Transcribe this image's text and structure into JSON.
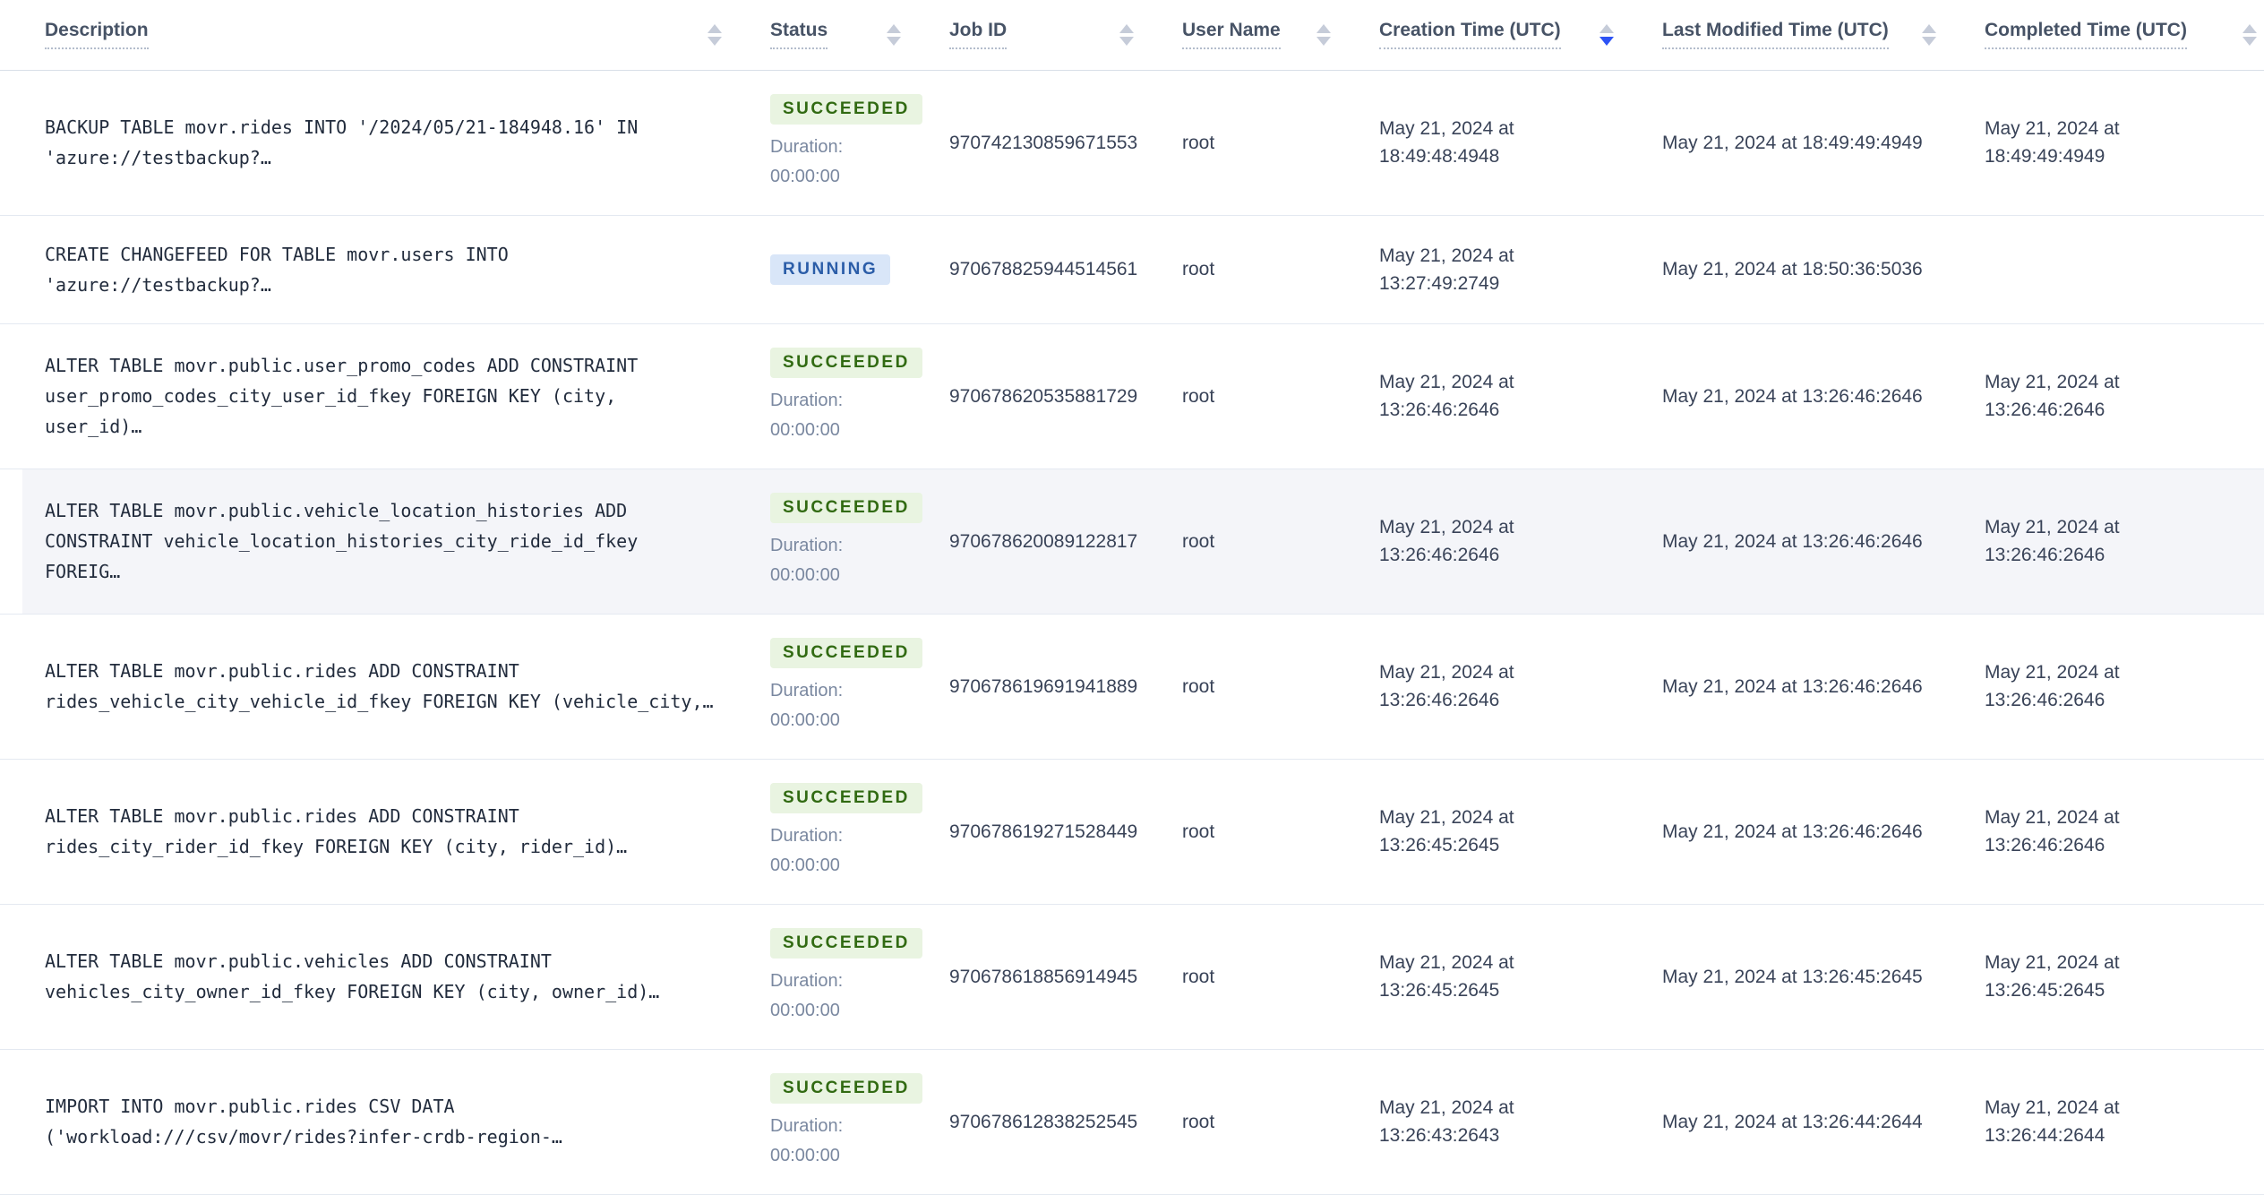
{
  "colors": {
    "succeeded_text": "#316a12",
    "succeeded_bg": "#e9f4e1",
    "running_text": "#2b5da8",
    "running_bg": "#d9e6f8",
    "sort_active": "#2d53f5",
    "sort_inactive": "#c6ccd9",
    "highlight_row_bg": "#f4f5f9"
  },
  "labels": {
    "duration": "Duration:"
  },
  "table": {
    "columns": [
      {
        "id": "description",
        "label": "Description",
        "sort": "none"
      },
      {
        "id": "status",
        "label": "Status",
        "sort": "none"
      },
      {
        "id": "job_id",
        "label": "Job ID",
        "sort": "none"
      },
      {
        "id": "user_name",
        "label": "User Name",
        "sort": "none"
      },
      {
        "id": "created",
        "label": "Creation Time (UTC)",
        "sort": "desc"
      },
      {
        "id": "modified",
        "label": "Last Modified Time (UTC)",
        "sort": "none"
      },
      {
        "id": "completed",
        "label": "Completed Time (UTC)",
        "sort": "none"
      }
    ],
    "rows": [
      {
        "description": "BACKUP TABLE movr.rides INTO '/2024/05/21-184948.16' IN 'azure://testbackup?…",
        "status": "SUCCEEDED",
        "duration": "00:00:00",
        "job_id": "970742130859671553",
        "user_name": "root",
        "created": "May 21, 2024 at 18:49:48:4948",
        "modified": "May 21, 2024 at 18:49:49:4949",
        "completed": "May 21, 2024 at 18:49:49:4949",
        "highlighted": false
      },
      {
        "description": "CREATE CHANGEFEED FOR TABLE movr.users INTO 'azure://testbackup?…",
        "status": "RUNNING",
        "duration": null,
        "job_id": "970678825944514561",
        "user_name": "root",
        "created": "May 21, 2024 at 13:27:49:2749",
        "modified": "May 21, 2024 at 18:50:36:5036",
        "completed": "",
        "highlighted": false
      },
      {
        "description": "ALTER TABLE movr.public.user_promo_codes ADD CONSTRAINT user_promo_codes_city_user_id_fkey FOREIGN KEY (city, user_id)…",
        "status": "SUCCEEDED",
        "duration": "00:00:00",
        "job_id": "970678620535881729",
        "user_name": "root",
        "created": "May 21, 2024 at 13:26:46:2646",
        "modified": "May 21, 2024 at 13:26:46:2646",
        "completed": "May 21, 2024 at 13:26:46:2646",
        "highlighted": false
      },
      {
        "description": "ALTER TABLE movr.public.vehicle_location_histories ADD CONSTRAINT vehicle_location_histories_city_ride_id_fkey FOREIG…",
        "status": "SUCCEEDED",
        "duration": "00:00:00",
        "job_id": "970678620089122817",
        "user_name": "root",
        "created": "May 21, 2024 at 13:26:46:2646",
        "modified": "May 21, 2024 at 13:26:46:2646",
        "completed": "May 21, 2024 at 13:26:46:2646",
        "highlighted": true
      },
      {
        "description": "ALTER TABLE movr.public.rides ADD CONSTRAINT rides_vehicle_city_vehicle_id_fkey FOREIGN KEY (vehicle_city,…",
        "status": "SUCCEEDED",
        "duration": "00:00:00",
        "job_id": "970678619691941889",
        "user_name": "root",
        "created": "May 21, 2024 at 13:26:46:2646",
        "modified": "May 21, 2024 at 13:26:46:2646",
        "completed": "May 21, 2024 at 13:26:46:2646",
        "highlighted": false
      },
      {
        "description": "ALTER TABLE movr.public.rides ADD CONSTRAINT rides_city_rider_id_fkey FOREIGN KEY (city, rider_id)…",
        "status": "SUCCEEDED",
        "duration": "00:00:00",
        "job_id": "970678619271528449",
        "user_name": "root",
        "created": "May 21, 2024 at 13:26:45:2645",
        "modified": "May 21, 2024 at 13:26:46:2646",
        "completed": "May 21, 2024 at 13:26:46:2646",
        "highlighted": false
      },
      {
        "description": "ALTER TABLE movr.public.vehicles ADD CONSTRAINT vehicles_city_owner_id_fkey FOREIGN KEY (city, owner_id)…",
        "status": "SUCCEEDED",
        "duration": "00:00:00",
        "job_id": "970678618856914945",
        "user_name": "root",
        "created": "May 21, 2024 at 13:26:45:2645",
        "modified": "May 21, 2024 at 13:26:45:2645",
        "completed": "May 21, 2024 at 13:26:45:2645",
        "highlighted": false
      },
      {
        "description": "IMPORT INTO movr.public.rides CSV DATA ('workload:///csv/movr/rides?infer-crdb-region-…",
        "status": "SUCCEEDED",
        "duration": "00:00:00",
        "job_id": "970678612838252545",
        "user_name": "root",
        "created": "May 21, 2024 at 13:26:43:2643",
        "modified": "May 21, 2024 at 13:26:44:2644",
        "completed": "May 21, 2024 at 13:26:44:2644",
        "highlighted": false
      }
    ]
  }
}
